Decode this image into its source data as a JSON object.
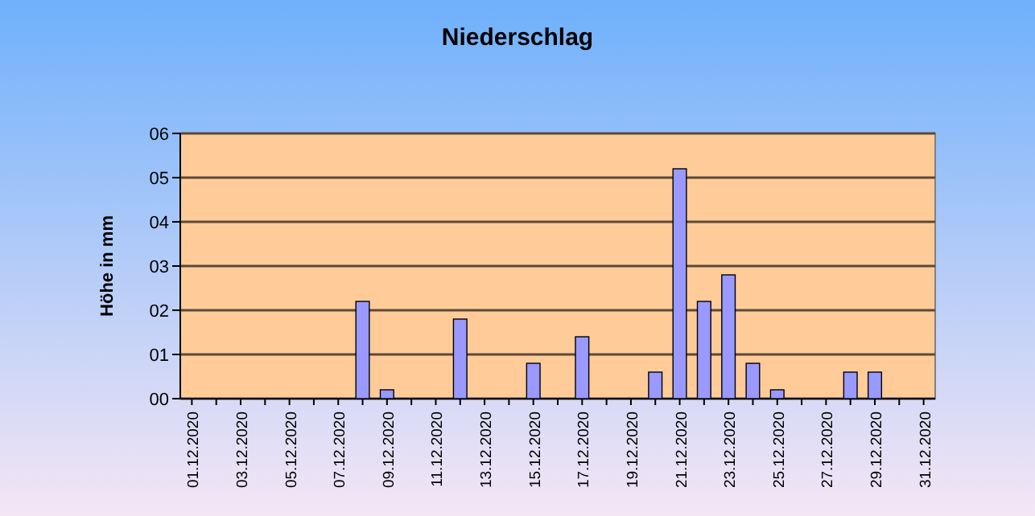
{
  "chart_data": {
    "type": "bar",
    "title": "Niederschlag",
    "ylabel": "Höhe in mm",
    "categories": [
      "01.12.2020",
      null,
      "03.12.2020",
      null,
      "05.12.2020",
      null,
      "07.12.2020",
      null,
      "09.12.2020",
      null,
      "11.12.2020",
      null,
      "13.12.2020",
      null,
      "15.12.2020",
      null,
      "17.12.2020",
      null,
      "19.12.2020",
      null,
      "21.12.2020",
      null,
      "23.12.2020",
      null,
      "25.12.2020",
      null,
      "27.12.2020",
      null,
      "29.12.2020",
      null,
      "31.12.2020"
    ],
    "values": [
      0,
      0,
      0,
      0,
      0,
      0,
      0,
      2.2,
      0.2,
      0,
      0,
      1.8,
      0,
      0,
      0.8,
      0,
      1.4,
      0,
      0,
      0.6,
      5.2,
      2.2,
      2.8,
      0.8,
      0.2,
      0,
      0,
      0.6,
      0.6,
      0,
      0
    ],
    "color": "#9999ff",
    "ylim": [
      0,
      6
    ],
    "yticks": [
      {
        "value": 0,
        "label": "00"
      },
      {
        "value": 1,
        "label": "01"
      },
      {
        "value": 2,
        "label": "02"
      },
      {
        "value": 3,
        "label": "03"
      },
      {
        "value": 4,
        "label": "04"
      },
      {
        "value": 5,
        "label": "05"
      },
      {
        "value": 6,
        "label": "06"
      }
    ],
    "grid": "y"
  }
}
